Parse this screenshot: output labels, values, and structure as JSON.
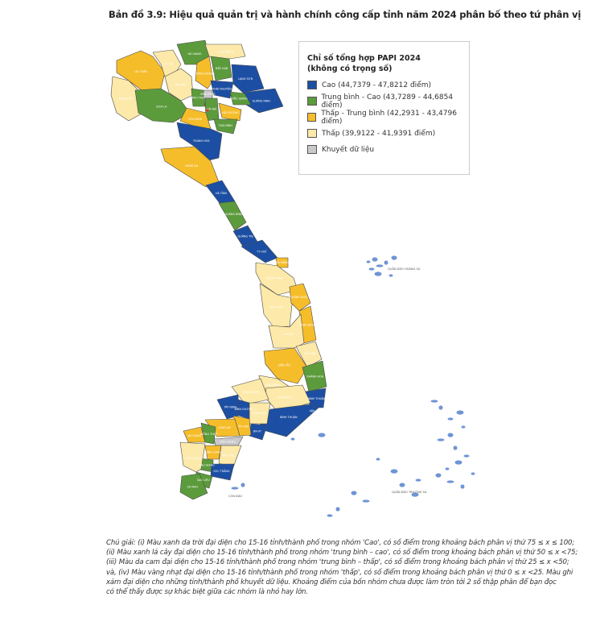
{
  "title": "Bản đồ 3.9: Hiệu quả quản trị và hành chính công cấp tỉnh năm 2024 phân bố theo tứ phân vị",
  "legend": {
    "title_line1": "Chỉ số tổng hợp PAPI 2024",
    "title_line2": "(không có trọng số)",
    "items": [
      {
        "label": "Cao (44,7379 - 47,8212 điểm)",
        "color": "#1c4fa3"
      },
      {
        "label": "Trung bình - Cao (43,7289 - 44,6854 điểm)",
        "color": "#5c9b3c"
      },
      {
        "label": "Thấp - Trung bình (42,2931 - 43,4796 điểm)",
        "color": "#f6bd2b"
      },
      {
        "label": "Thấp (39,9122 - 41,9391 điểm)",
        "color": "#fde9a9"
      },
      {
        "label": "Khuyết dữ liệu",
        "color": "#c9c9cb"
      }
    ]
  },
  "islands": {
    "paracel": "QUẦN ĐẢO HOÀNG SA",
    "spratly": "QUẦN ĐẢO TRƯỜNG SA",
    "con_dao": "CÔN ĐẢO",
    "color": "#6e95d4"
  },
  "provinces": [
    {
      "name": "LAI CHÂU",
      "group": 2
    },
    {
      "name": "ĐIỆN BIÊN",
      "group": 3
    },
    {
      "name": "LÀO CAI",
      "group": 3
    },
    {
      "name": "YÊN BÁI",
      "group": 3
    },
    {
      "name": "HÀ GIANG",
      "group": 1
    },
    {
      "name": "CAO BẰNG",
      "group": 3
    },
    {
      "name": "TUYÊN QUANG",
      "group": 2
    },
    {
      "name": "BẮC KẠN",
      "group": 1
    },
    {
      "name": "LẠNG SƠN",
      "group": 0
    },
    {
      "name": "THÁI NGUYÊN",
      "group": 0
    },
    {
      "name": "SƠN LA",
      "group": 1
    },
    {
      "name": "PHÚ THỌ",
      "group": 1
    },
    {
      "name": "QUẢNG NINH",
      "group": 0
    },
    {
      "name": "BẮC GIANG",
      "group": 1
    },
    {
      "name": "VĨNH PHÚC",
      "group": 4
    },
    {
      "name": "HÀ NỘI",
      "group": 1
    },
    {
      "name": "HÒA BÌNH",
      "group": 2
    },
    {
      "name": "HẢI DƯƠNG",
      "group": 2
    },
    {
      "name": "THÁI BÌNH",
      "group": 1
    },
    {
      "name": "THANH HÓA",
      "group": 0
    },
    {
      "name": "NGHỆ AN",
      "group": 2
    },
    {
      "name": "HÀ TĨNH",
      "group": 0
    },
    {
      "name": "QUẢNG BÌNH",
      "group": 1
    },
    {
      "name": "QUẢNG TRỊ",
      "group": 0
    },
    {
      "name": "TT HUẾ",
      "group": 0
    },
    {
      "name": "ĐÀ NẴNG",
      "group": 2
    },
    {
      "name": "QUẢNG NAM",
      "group": 3
    },
    {
      "name": "KON TUM",
      "group": 3
    },
    {
      "name": "QUẢNG NGÃI",
      "group": 2
    },
    {
      "name": "BÌNH ĐỊNH",
      "group": 2
    },
    {
      "name": "GIA LAI",
      "group": 3
    },
    {
      "name": "PHÚ YÊN",
      "group": 3
    },
    {
      "name": "ĐẮK LẮK",
      "group": 2
    },
    {
      "name": "KHÁNH HÒA",
      "group": 1
    },
    {
      "name": "NINH THUẬN",
      "group": 0
    },
    {
      "name": "ĐẮK NÔNG",
      "group": 3
    },
    {
      "name": "LÂM ĐỒNG",
      "group": 3
    },
    {
      "name": "BÌNH PHƯỚC",
      "group": 3
    },
    {
      "name": "BÌNH THUẬN",
      "group": 0
    },
    {
      "name": "ĐỒNG NAI",
      "group": 3
    },
    {
      "name": "BÌNH DƯƠNG",
      "group": 0
    },
    {
      "name": "TÂY NINH",
      "group": 0
    },
    {
      "name": "BR-VT",
      "group": 0
    },
    {
      "name": "TP HCM",
      "group": 2
    },
    {
      "name": "LONG AN",
      "group": 2
    },
    {
      "name": "AN GIANG",
      "group": 2
    },
    {
      "name": "ĐỒNG THÁP",
      "group": 1
    },
    {
      "name": "TIỀN GIANG",
      "group": 4
    },
    {
      "name": "VĨNH LONG",
      "group": 2
    },
    {
      "name": "BẾN TRE",
      "group": 3
    },
    {
      "name": "HẬU GIANG",
      "group": 1
    },
    {
      "name": "SÓC TRĂNG",
      "group": 0
    },
    {
      "name": "BẠC LIÊU",
      "group": 1
    },
    {
      "name": "CÀ MAU",
      "group": 1
    },
    {
      "name": "KIÊN GIANG",
      "group": 3
    }
  ],
  "caption": [
    "Chú giải: (i) Màu xanh da trời đại diện cho 15-16 tỉnh/thành phố trong nhóm 'Cao', có số điểm trong khoảng bách phân vị thứ 75 ≤ x ≤ 100;",
    "(ii) Màu xanh lá cây đại diện cho 15-16 tỉnh/thành phố trong nhóm 'trung bình – cao', có số điểm trong khoảng bách phân vị thứ 50 ≤ x <75;",
    "(iii) Màu da cam đại diện cho 15-16 tỉnh/thành phố trong nhóm 'trung bình – thấp', có số điểm trong khoảng bách phân vị thứ 25 ≤ x <50;",
    "và, (iv) Màu vàng nhạt đại diện cho 15-16 tỉnh/thành phố trong nhóm 'thấp', có số điểm trong khoảng bách phân vị thứ 0 ≤ x <25. Màu ghi",
    "xám đại diện cho những tỉnh/thành phố khuyết dữ liệu. Khoảng điểm của bốn nhóm chưa được làm tròn tới 2 số thập phân để bạn đọc",
    "có thể thấy được sự khác biệt giữa các nhóm là nhỏ hay lớn."
  ]
}
